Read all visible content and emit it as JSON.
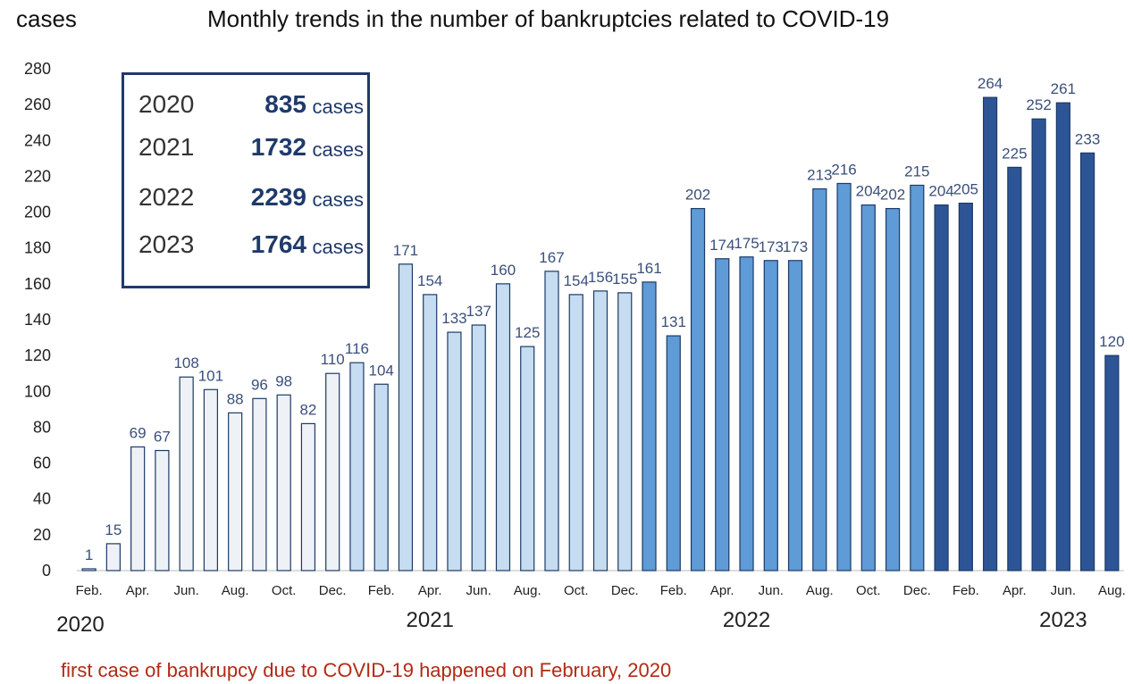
{
  "header": {
    "unit_label": "cases",
    "title": "Monthly trends in the number of bankruptcies related to COVID-19"
  },
  "summary": [
    {
      "year": "2020",
      "value": "835",
      "unit": "cases"
    },
    {
      "year": "2021",
      "value": "1732",
      "unit": "cases"
    },
    {
      "year": "2022",
      "value": "2239",
      "unit": "cases"
    },
    {
      "year": "2023",
      "value": "1764",
      "unit": "cases"
    }
  ],
  "footnote": "first case of bankrupcy due to COVID-19 happened on February, 2020",
  "chart_data": {
    "type": "bar",
    "title": "Monthly trends in the number of bankruptcies related to COVID-19",
    "ylabel": "cases",
    "ylim": [
      0,
      280
    ],
    "yticks": [
      0,
      20,
      40,
      60,
      80,
      100,
      120,
      140,
      160,
      180,
      200,
      220,
      240,
      260,
      280
    ],
    "grid": false,
    "colors": {
      "2020": "#eef1f5",
      "2021": "#c6dcf0",
      "2022": "#5f9bd6",
      "2023": "#2d5596",
      "outline": "#1d3a66"
    },
    "year_labels": [
      {
        "year": "2020",
        "at_index": 0
      },
      {
        "year": "2021",
        "at_index": 14
      },
      {
        "year": "2022",
        "at_index": 27
      },
      {
        "year": "2023",
        "at_index": 40
      }
    ],
    "x_tick_labels": [
      {
        "i": 0,
        "label": "Feb."
      },
      {
        "i": 2,
        "label": "Apr."
      },
      {
        "i": 4,
        "label": "Jun."
      },
      {
        "i": 6,
        "label": "Aug."
      },
      {
        "i": 8,
        "label": "Oct."
      },
      {
        "i": 10,
        "label": "Dec."
      },
      {
        "i": 12,
        "label": "Feb."
      },
      {
        "i": 14,
        "label": "Apr."
      },
      {
        "i": 16,
        "label": "Jun."
      },
      {
        "i": 18,
        "label": "Aug."
      },
      {
        "i": 20,
        "label": "Oct."
      },
      {
        "i": 22,
        "label": "Dec."
      },
      {
        "i": 24,
        "label": "Feb."
      },
      {
        "i": 26,
        "label": "Apr."
      },
      {
        "i": 28,
        "label": "Jun."
      },
      {
        "i": 30,
        "label": "Aug."
      },
      {
        "i": 32,
        "label": "Oct."
      },
      {
        "i": 34,
        "label": "Dec."
      },
      {
        "i": 36,
        "label": "Feb."
      },
      {
        "i": 38,
        "label": "Apr."
      },
      {
        "i": 40,
        "label": "Jun."
      },
      {
        "i": 42,
        "label": "Aug."
      }
    ],
    "bars": [
      {
        "year": "2020",
        "month": "Feb.",
        "value": 1
      },
      {
        "year": "2020",
        "month": "Mar.",
        "value": 15
      },
      {
        "year": "2020",
        "month": "Apr.",
        "value": 69
      },
      {
        "year": "2020",
        "month": "May",
        "value": 67
      },
      {
        "year": "2020",
        "month": "Jun.",
        "value": 108
      },
      {
        "year": "2020",
        "month": "Jul.",
        "value": 101
      },
      {
        "year": "2020",
        "month": "Aug.",
        "value": 88
      },
      {
        "year": "2020",
        "month": "Sep.",
        "value": 96
      },
      {
        "year": "2020",
        "month": "Oct.",
        "value": 98
      },
      {
        "year": "2020",
        "month": "Nov.",
        "value": 82
      },
      {
        "year": "2020",
        "month": "Dec.",
        "value": 110
      },
      {
        "year": "2021",
        "month": "Jan.",
        "value": 116
      },
      {
        "year": "2021",
        "month": "Feb.",
        "value": 104
      },
      {
        "year": "2021",
        "month": "Mar.",
        "value": 171
      },
      {
        "year": "2021",
        "month": "Apr.",
        "value": 154
      },
      {
        "year": "2021",
        "month": "May",
        "value": 133
      },
      {
        "year": "2021",
        "month": "Jun.",
        "value": 137
      },
      {
        "year": "2021",
        "month": "Jul.",
        "value": 160
      },
      {
        "year": "2021",
        "month": "Aug.",
        "value": 125
      },
      {
        "year": "2021",
        "month": "Sep.",
        "value": 167
      },
      {
        "year": "2021",
        "month": "Oct.",
        "value": 154
      },
      {
        "year": "2021",
        "month": "Nov.",
        "value": 156
      },
      {
        "year": "2021",
        "month": "Dec.",
        "value": 155
      },
      {
        "year": "2022",
        "month": "Jan.",
        "value": 161
      },
      {
        "year": "2022",
        "month": "Feb.",
        "value": 131
      },
      {
        "year": "2022",
        "month": "Mar.",
        "value": 202
      },
      {
        "year": "2022",
        "month": "Apr.",
        "value": 174
      },
      {
        "year": "2022",
        "month": "May",
        "value": 175
      },
      {
        "year": "2022",
        "month": "Jun.",
        "value": 173
      },
      {
        "year": "2022",
        "month": "Jul.",
        "value": 173
      },
      {
        "year": "2022",
        "month": "Aug.",
        "value": 213
      },
      {
        "year": "2022",
        "month": "Sep.",
        "value": 216
      },
      {
        "year": "2022",
        "month": "Oct.",
        "value": 204
      },
      {
        "year": "2022",
        "month": "Nov.",
        "value": 202
      },
      {
        "year": "2022",
        "month": "Dec.",
        "value": 215
      },
      {
        "year": "2023",
        "month": "Jan.",
        "value": 204
      },
      {
        "year": "2023",
        "month": "Feb.",
        "value": 205
      },
      {
        "year": "2023",
        "month": "Mar.",
        "value": 264
      },
      {
        "year": "2023",
        "month": "Apr.",
        "value": 225
      },
      {
        "year": "2023",
        "month": "May",
        "value": 252
      },
      {
        "year": "2023",
        "month": "Jun.",
        "value": 261
      },
      {
        "year": "2023",
        "month": "Jul.",
        "value": 233
      },
      {
        "year": "2023",
        "month": "Aug.",
        "value": 120
      }
    ]
  }
}
